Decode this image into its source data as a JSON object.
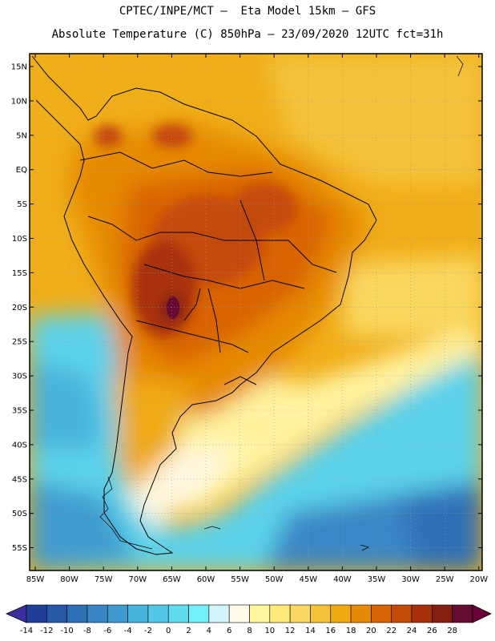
{
  "header": {
    "line1": "CPTEC/INPE/MCT –  Eta Model 15km – GFS",
    "line2": "Absolute Temperature (C) 850hPa – 23/09/2020 12UTC fct=31h"
  },
  "map": {
    "lat_labels": [
      "15N",
      "10N",
      "5N",
      "EQ",
      "5S",
      "10S",
      "15S",
      "20S",
      "25S",
      "30S",
      "35S",
      "40S",
      "45S",
      "50S",
      "55S"
    ],
    "lon_labels": [
      "85W",
      "80W",
      "75W",
      "70W",
      "65W",
      "60W",
      "55W",
      "50W",
      "45W",
      "40W",
      "35W",
      "30W",
      "25W",
      "20W"
    ]
  },
  "colorbar": {
    "tick_labels": [
      "-14",
      "-12",
      "-10",
      "-8",
      "-6",
      "-4",
      "-2",
      "0",
      "2",
      "4",
      "6",
      "8",
      "10",
      "12",
      "14",
      "16",
      "18",
      "20",
      "22",
      "24",
      "26",
      "28"
    ],
    "colors": [
      "#1f3f96",
      "#2759a8",
      "#2f6fb6",
      "#3a86c4",
      "#3f9bcf",
      "#46b3dc",
      "#52c8e6",
      "#60dcef",
      "#76f0f8",
      "#d4f4fb",
      "#fffbe8",
      "#fff69d",
      "#ffe978",
      "#f9d860",
      "#f4c23a",
      "#efaa12",
      "#e68a06",
      "#d86404",
      "#c44a0a",
      "#a8300c",
      "#842012",
      "#650a30"
    ],
    "under_color": "#3b2fa0",
    "over_color": "#6b0038"
  }
}
